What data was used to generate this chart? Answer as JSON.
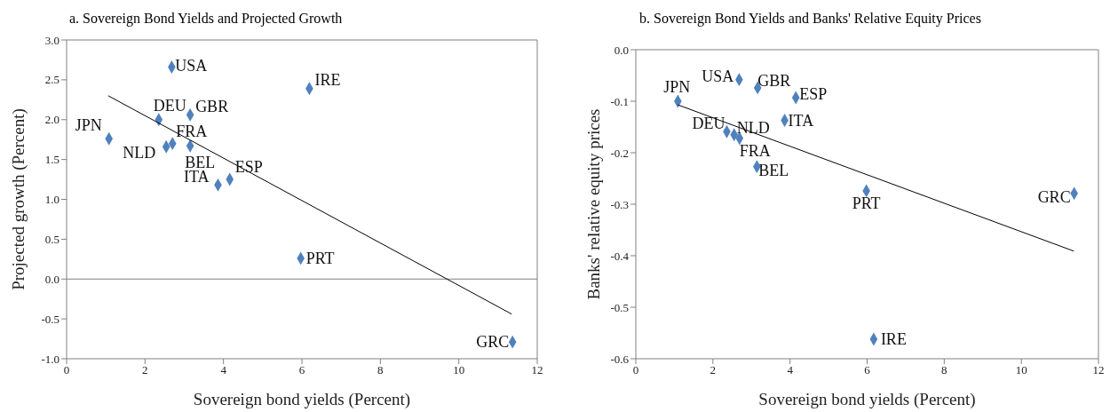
{
  "chart_data": [
    {
      "type": "scatter",
      "title": "a. Sovereign Bond Yields and Projected Growth",
      "xlabel": "Sovereign bond yields (Percent)",
      "ylabel": "Projected growth (Percent)",
      "xlim": [
        0,
        12
      ],
      "xticks": [
        0,
        2,
        4,
        6,
        8,
        10,
        12
      ],
      "ylim": [
        -1,
        3
      ],
      "yticks": [
        {
          "value": -1,
          "label": "-1.0"
        },
        -0.5,
        {
          "value": 0,
          "label": "0.0"
        },
        0.5,
        {
          "value": 1,
          "label": "1.0"
        },
        1.5,
        {
          "value": 2,
          "label": "2.0"
        },
        2.5,
        {
          "value": 3,
          "label": "3.0"
        }
      ],
      "marker": "diamond",
      "grid": false,
      "ref_lines": [
        {
          "axis": "y",
          "value": 0,
          "color": "#808080"
        }
      ],
      "series": [
        {
          "color": "#4f81bd",
          "x": [
            2.68,
            6.19,
            2.35,
            3.15,
            1.08,
            2.54,
            2.7,
            3.15,
            3.86,
            4.16,
            5.97,
            11.37
          ],
          "values": [
            2.66,
            2.39,
            2.0,
            2.06,
            1.76,
            1.66,
            1.7,
            1.67,
            1.18,
            1.25,
            0.26,
            -0.79
          ]
        },
        {
          "type": "line",
          "color": "#000000",
          "marker": "none",
          "x": [
            1.06,
            11.35
          ],
          "values": [
            2.3,
            -0.44
          ]
        }
      ],
      "annotations": [
        {
          "text": "USA",
          "x": 2.68,
          "y": 2.66
        },
        {
          "text": "IRE",
          "x": 6.19,
          "y": 2.39
        },
        {
          "text": "DEU",
          "x": 2.35,
          "y": 2.0
        },
        {
          "text": "GBR",
          "x": 3.15,
          "y": 2.06
        },
        {
          "text": "JPN",
          "x": 1.08,
          "y": 1.76
        },
        {
          "text": "NLD",
          "x": 2.54,
          "y": 1.66
        },
        {
          "text": "FRA",
          "x": 2.7,
          "y": 1.7
        },
        {
          "text": "BEL",
          "x": 3.15,
          "y": 1.67
        },
        {
          "text": "ITA",
          "x": 3.86,
          "y": 1.18
        },
        {
          "text": "ESP",
          "x": 4.16,
          "y": 1.25
        },
        {
          "text": "PRT",
          "x": 5.97,
          "y": 0.26
        },
        {
          "text": "GRC",
          "x": 11.37,
          "y": -0.79
        }
      ]
    },
    {
      "type": "scatter",
      "title": "b. Sovereign Bond Yields and Banks' Relative Equity Prices",
      "xlabel": "Sovereign bond yields (Percent)",
      "ylabel": "Banks' relative equity prices",
      "xlim": [
        0,
        12
      ],
      "xticks": [
        0,
        2,
        4,
        6,
        8,
        10,
        12
      ],
      "ylim": [
        -0.6,
        0
      ],
      "yticks": [
        -0.6,
        -0.5,
        -0.4,
        -0.3,
        -0.2,
        -0.1,
        {
          "value": 0,
          "label": "0.0"
        }
      ],
      "marker": "diamond",
      "grid": false,
      "series": [
        {
          "color": "#4f81bd",
          "x": [
            2.68,
            3.16,
            4.15,
            1.09,
            3.86,
            2.36,
            2.55,
            2.69,
            3.14,
            5.98,
            11.37,
            6.17
          ],
          "values": [
            -0.058,
            -0.074,
            -0.093,
            -0.1,
            -0.137,
            -0.159,
            -0.165,
            -0.172,
            -0.227,
            -0.274,
            -0.279,
            -0.562
          ]
        },
        {
          "type": "line",
          "color": "#000000",
          "marker": "none",
          "x": [
            1.09,
            11.36
          ],
          "values": [
            -0.107,
            -0.391
          ]
        }
      ],
      "annotations": [
        {
          "text": "USA",
          "x": 2.68,
          "y": -0.058
        },
        {
          "text": "GBR",
          "x": 3.16,
          "y": -0.074
        },
        {
          "text": "ESP",
          "x": 4.15,
          "y": -0.093
        },
        {
          "text": "JPN",
          "x": 1.09,
          "y": -0.1
        },
        {
          "text": "ITA",
          "x": 3.86,
          "y": -0.137
        },
        {
          "text": "DEU",
          "x": 2.36,
          "y": -0.159
        },
        {
          "text": "NLD",
          "x": 2.55,
          "y": -0.165
        },
        {
          "text": "FRA",
          "x": 2.69,
          "y": -0.172
        },
        {
          "text": "BEL",
          "x": 3.14,
          "y": -0.227
        },
        {
          "text": "PRT",
          "x": 5.98,
          "y": -0.274
        },
        {
          "text": "GRC",
          "x": 11.37,
          "y": -0.279
        },
        {
          "text": "IRE",
          "x": 6.17,
          "y": -0.562
        }
      ]
    }
  ]
}
